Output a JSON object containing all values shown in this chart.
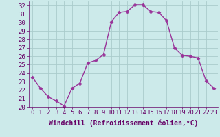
{
  "x": [
    0,
    1,
    2,
    3,
    4,
    5,
    6,
    7,
    8,
    9,
    10,
    11,
    12,
    13,
    14,
    15,
    16,
    17,
    18,
    19,
    20,
    21,
    22,
    23
  ],
  "y": [
    23.5,
    22.2,
    21.2,
    20.7,
    20.1,
    22.2,
    22.8,
    25.2,
    25.5,
    26.2,
    30.1,
    31.2,
    31.3,
    32.1,
    32.1,
    31.3,
    31.2,
    30.2,
    27.0,
    26.1,
    26.0,
    25.8,
    23.1,
    22.2
  ],
  "line_color": "#993399",
  "marker": "D",
  "marker_size": 2.5,
  "bg_color": "#cceaea",
  "grid_color": "#aacccc",
  "xlabel": "Windchill (Refroidissement éolien,°C)",
  "xlabel_fontsize": 7,
  "xlim": [
    -0.5,
    23.5
  ],
  "ylim": [
    20,
    32.5
  ],
  "yticks": [
    20,
    21,
    22,
    23,
    24,
    25,
    26,
    27,
    28,
    29,
    30,
    31,
    32
  ],
  "xticks": [
    0,
    1,
    2,
    3,
    4,
    5,
    6,
    7,
    8,
    9,
    10,
    11,
    12,
    13,
    14,
    15,
    16,
    17,
    18,
    19,
    20,
    21,
    22,
    23
  ],
  "tick_fontsize": 6.5,
  "line_width": 1.0
}
